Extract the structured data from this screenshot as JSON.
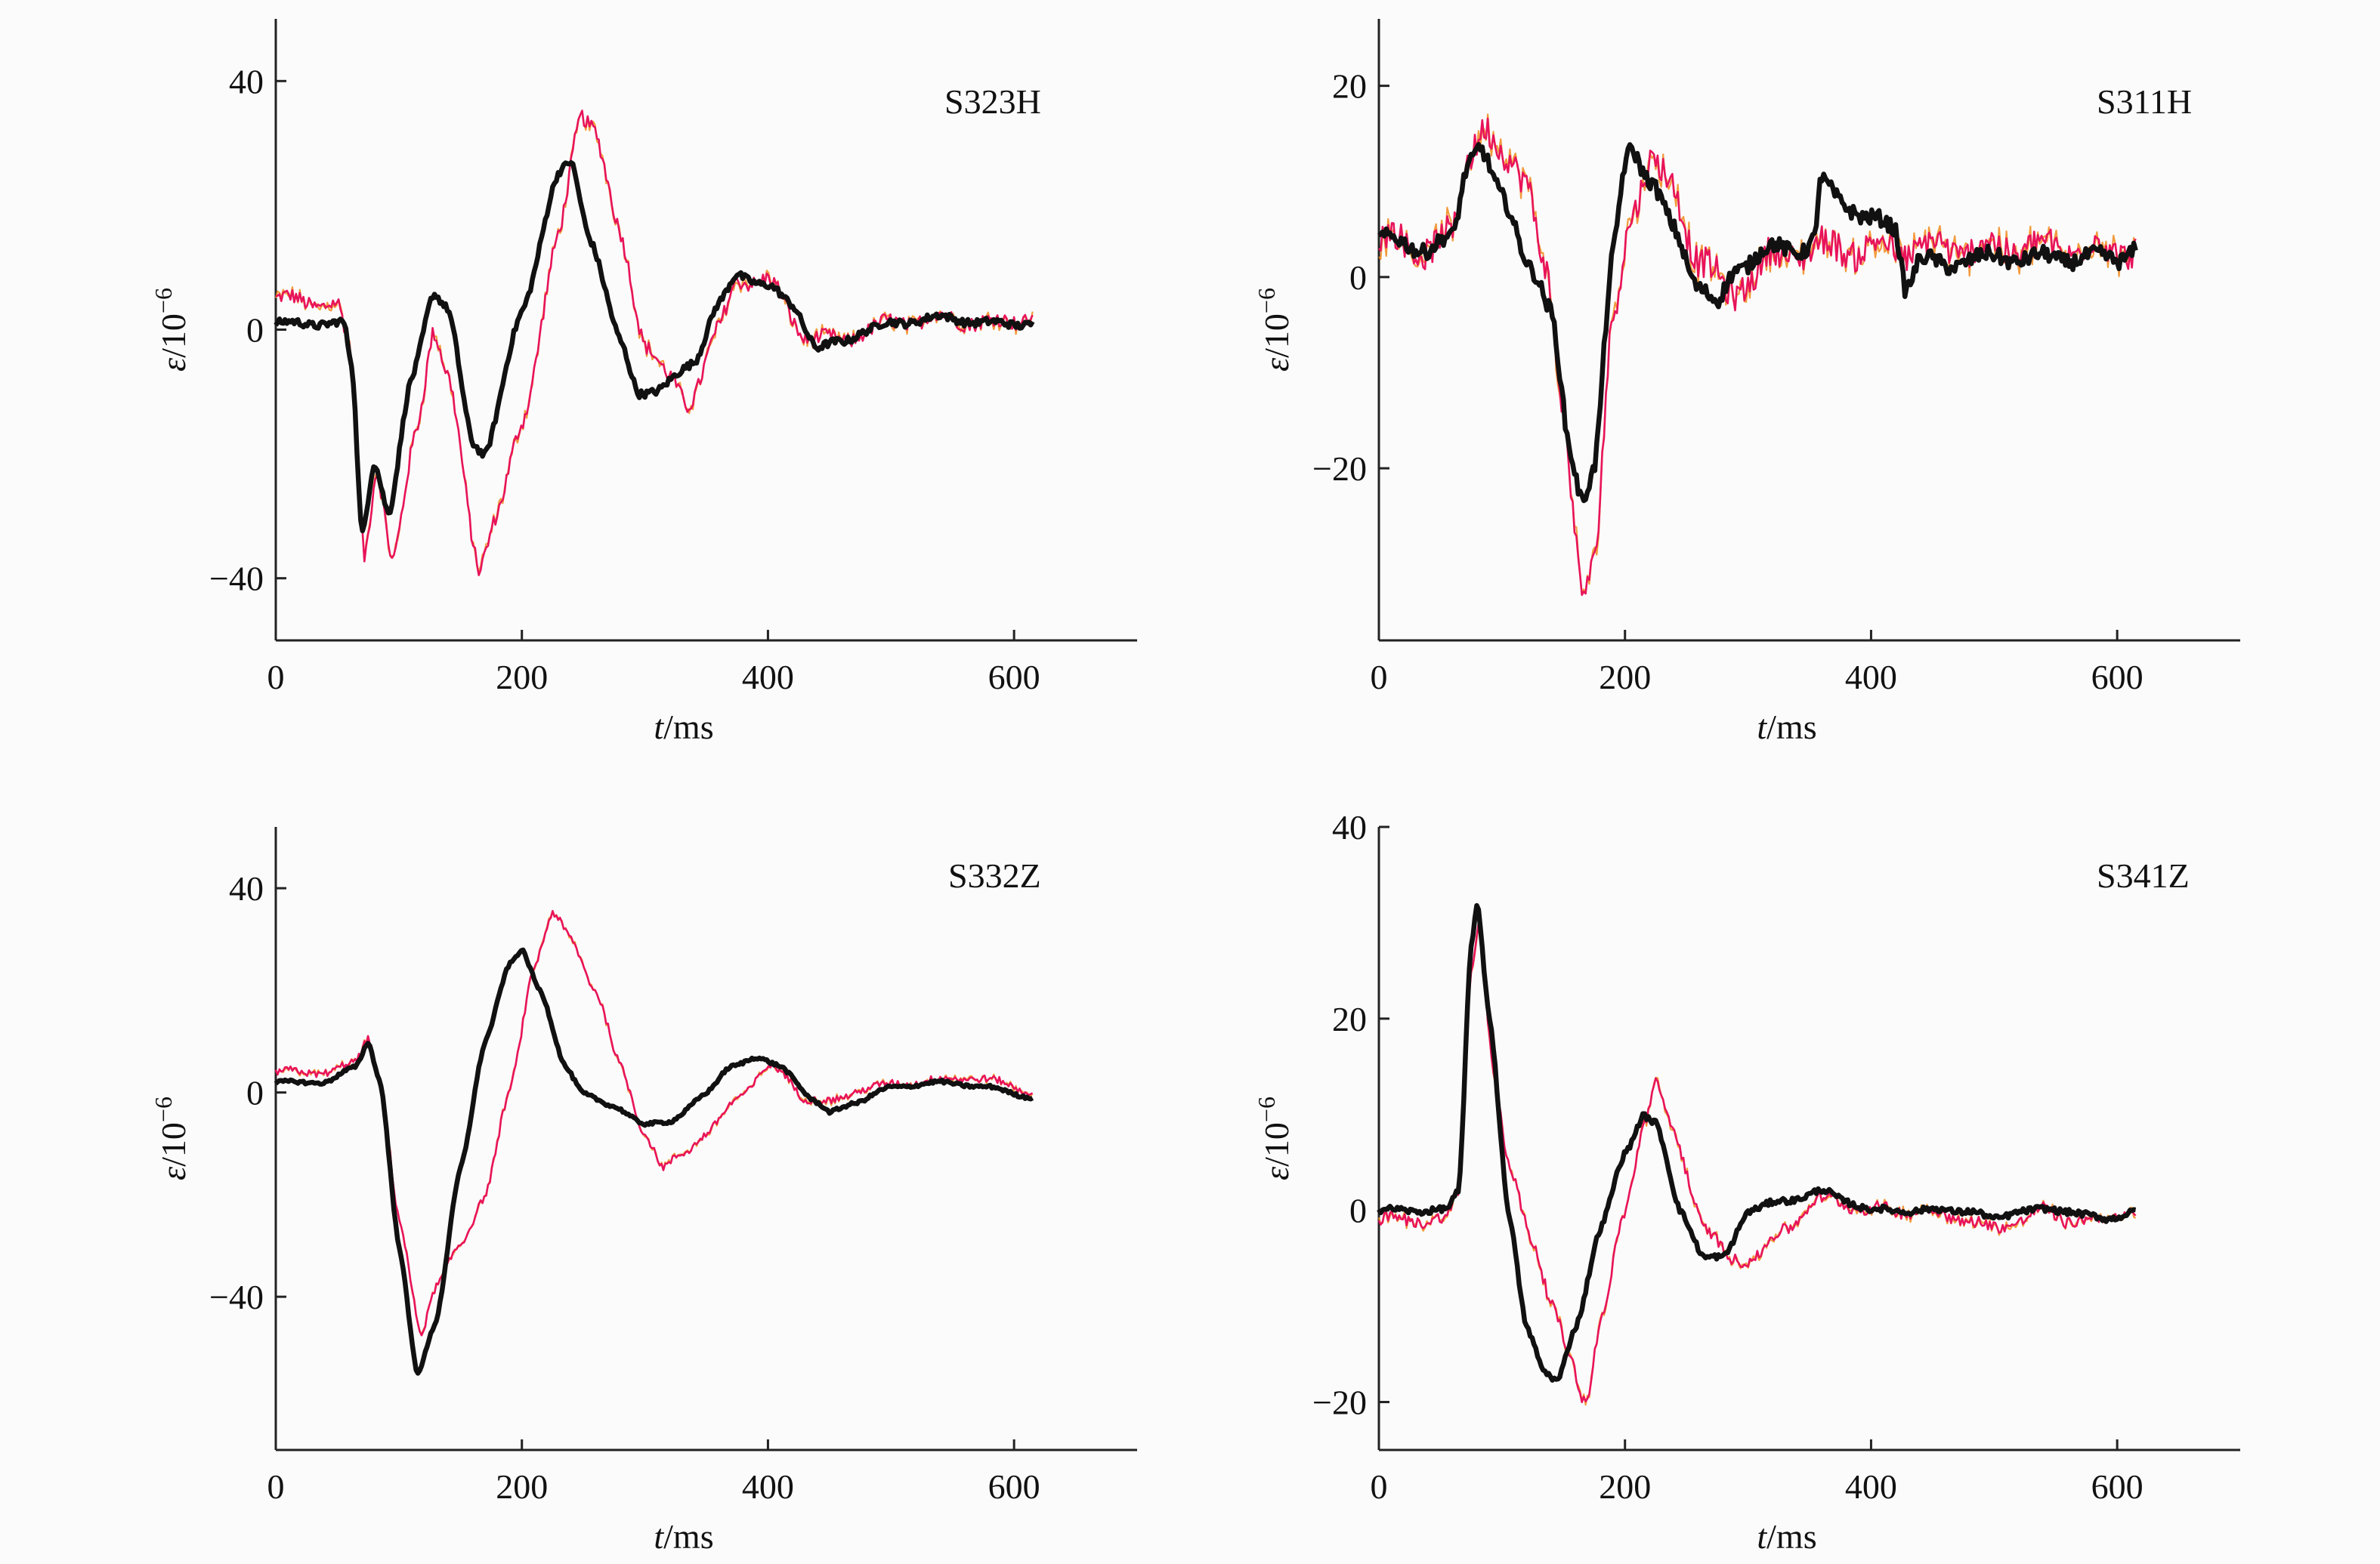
{
  "colors": {
    "background": "#fbfbfb",
    "axis": "#222222",
    "black_series": "#111111",
    "red_series": "#e8135a",
    "orange_series": "#f08a1c"
  },
  "chart_data": [
    {
      "type": "line",
      "panel_label": "S323H",
      "xlabel": {
        "var": "t",
        "unit": "/ms"
      },
      "ylabel": {
        "var": "ε",
        "unit": "/10",
        "exp": "−6"
      },
      "xlim": [
        0,
        700
      ],
      "ylim": [
        -50,
        50
      ],
      "xticks": [
        0,
        200,
        400,
        600
      ],
      "xtick_labels": [
        "0",
        "200",
        "400",
        "600"
      ],
      "yticks": [
        -40,
        0,
        40
      ],
      "ytick_labels": [
        "−40",
        "0",
        "40"
      ],
      "series": [
        {
          "color": "black",
          "noise": 0.6,
          "points": [
            [
              0,
              1
            ],
            [
              55,
              1
            ],
            [
              62,
              -6
            ],
            [
              70,
              -33
            ],
            [
              80,
              -21
            ],
            [
              92,
              -30
            ],
            [
              110,
              -8
            ],
            [
              128,
              6
            ],
            [
              140,
              3
            ],
            [
              160,
              -18
            ],
            [
              170,
              -20
            ],
            [
              200,
              3
            ],
            [
              230,
              25
            ],
            [
              240,
              27
            ],
            [
              255,
              15
            ],
            [
              280,
              -2
            ],
            [
              295,
              -10
            ],
            [
              310,
              -10
            ],
            [
              340,
              -5
            ],
            [
              360,
              4
            ],
            [
              375,
              9
            ],
            [
              400,
              7
            ],
            [
              420,
              4
            ],
            [
              440,
              -3
            ],
            [
              460,
              -2
            ],
            [
              480,
              0
            ],
            [
              500,
              1
            ],
            [
              540,
              2
            ],
            [
              580,
              1
            ],
            [
              615,
              1
            ]
          ]
        },
        {
          "color": "red",
          "noise": 1.2,
          "points": [
            [
              0,
              5
            ],
            [
              50,
              4
            ],
            [
              60,
              -3
            ],
            [
              72,
              -36
            ],
            [
              82,
              -22
            ],
            [
              95,
              -38
            ],
            [
              115,
              -15
            ],
            [
              128,
              0
            ],
            [
              140,
              -8
            ],
            [
              165,
              -38
            ],
            [
              180,
              -30
            ],
            [
              200,
              -15
            ],
            [
              230,
              15
            ],
            [
              248,
              35
            ],
            [
              258,
              33
            ],
            [
              280,
              15
            ],
            [
              300,
              -2
            ],
            [
              320,
              -8
            ],
            [
              335,
              -12
            ],
            [
              360,
              0
            ],
            [
              375,
              8
            ],
            [
              400,
              8
            ],
            [
              430,
              -1
            ],
            [
              460,
              -2
            ],
            [
              480,
              0
            ],
            [
              500,
              1
            ],
            [
              540,
              2
            ],
            [
              580,
              1
            ],
            [
              615,
              2
            ]
          ]
        }
      ]
    },
    {
      "type": "line",
      "panel_label": "S311H",
      "xlabel": {
        "var": "t",
        "unit": "/ms"
      },
      "ylabel": {
        "var": "ε",
        "unit": "/10",
        "exp": "−6"
      },
      "xlim": [
        0,
        700
      ],
      "ylim": [
        -38,
        27
      ],
      "xticks": [
        0,
        200,
        400,
        600
      ],
      "xtick_labels": [
        "0",
        "200",
        "400",
        "600"
      ],
      "yticks": [
        -20,
        0,
        20
      ],
      "ytick_labels": [
        "−20",
        "0",
        "20"
      ],
      "series": [
        {
          "color": "black",
          "noise": 0.8,
          "points": [
            [
              0,
              4
            ],
            [
              40,
              3
            ],
            [
              60,
              4
            ],
            [
              72,
              12
            ],
            [
              82,
              14
            ],
            [
              100,
              8
            ],
            [
              125,
              1
            ],
            [
              140,
              -4
            ],
            [
              155,
              -18
            ],
            [
              165,
              -23
            ],
            [
              175,
              -20
            ],
            [
              190,
              2
            ],
            [
              200,
              12
            ],
            [
              205,
              14
            ],
            [
              220,
              10
            ],
            [
              240,
              5
            ],
            [
              260,
              -1
            ],
            [
              275,
              -3
            ],
            [
              290,
              1
            ],
            [
              320,
              3
            ],
            [
              345,
              3
            ],
            [
              355,
              4
            ],
            [
              358,
              10
            ],
            [
              375,
              8
            ],
            [
              400,
              6
            ],
            [
              420,
              5
            ],
            [
              428,
              -1
            ],
            [
              440,
              2
            ],
            [
              460,
              1
            ],
            [
              480,
              2
            ],
            [
              520,
              2
            ],
            [
              560,
              2
            ],
            [
              600,
              2
            ],
            [
              615,
              3
            ]
          ]
        },
        {
          "color": "red",
          "noise": 1.6,
          "points": [
            [
              0,
              4
            ],
            [
              40,
              3
            ],
            [
              60,
              4
            ],
            [
              72,
              13
            ],
            [
              85,
              16
            ],
            [
              100,
              12
            ],
            [
              120,
              11
            ],
            [
              135,
              1
            ],
            [
              150,
              -15
            ],
            [
              165,
              -32
            ],
            [
              175,
              -30
            ],
            [
              190,
              -5
            ],
            [
              205,
              7
            ],
            [
              220,
              12
            ],
            [
              240,
              9
            ],
            [
              260,
              2
            ],
            [
              285,
              -2
            ],
            [
              300,
              0
            ],
            [
              320,
              2
            ],
            [
              350,
              3
            ],
            [
              380,
              3
            ],
            [
              400,
              3
            ],
            [
              430,
              3
            ],
            [
              460,
              3
            ],
            [
              480,
              3
            ],
            [
              520,
              3
            ],
            [
              560,
              3
            ],
            [
              600,
              3
            ],
            [
              615,
              3
            ]
          ]
        }
      ]
    },
    {
      "type": "line",
      "panel_label": "S332Z",
      "xlabel": {
        "var": "t",
        "unit": "/ms"
      },
      "ylabel": {
        "var": "ε",
        "unit": "/10",
        "exp": "−6"
      },
      "xlim": [
        0,
        700
      ],
      "ylim": [
        -70,
        52
      ],
      "xticks": [
        0,
        200,
        400,
        600
      ],
      "xtick_labels": [
        "0",
        "200",
        "400",
        "600"
      ],
      "yticks": [
        -40,
        0,
        40
      ],
      "ytick_labels": [
        "−40",
        "0",
        "40"
      ],
      "series": [
        {
          "color": "black",
          "noise": 0.3,
          "points": [
            [
              0,
              2
            ],
            [
              40,
              2
            ],
            [
              65,
              5
            ],
            [
              75,
              10
            ],
            [
              85,
              2
            ],
            [
              100,
              -30
            ],
            [
              115,
              -55
            ],
            [
              130,
              -45
            ],
            [
              150,
              -15
            ],
            [
              170,
              10
            ],
            [
              190,
              25
            ],
            [
              200,
              28
            ],
            [
              215,
              20
            ],
            [
              235,
              5
            ],
            [
              250,
              0
            ],
            [
              275,
              -3
            ],
            [
              300,
              -6
            ],
            [
              320,
              -6
            ],
            [
              350,
              0
            ],
            [
              370,
              5
            ],
            [
              390,
              7
            ],
            [
              410,
              5
            ],
            [
              440,
              -2
            ],
            [
              450,
              -4
            ],
            [
              470,
              -2
            ],
            [
              500,
              1
            ],
            [
              540,
              2
            ],
            [
              580,
              1
            ],
            [
              615,
              -1
            ]
          ]
        },
        {
          "color": "red",
          "noise": 0.7,
          "points": [
            [
              0,
              4
            ],
            [
              45,
              4
            ],
            [
              65,
              6
            ],
            [
              75,
              11
            ],
            [
              85,
              2
            ],
            [
              100,
              -25
            ],
            [
              118,
              -47
            ],
            [
              130,
              -38
            ],
            [
              150,
              -30
            ],
            [
              170,
              -20
            ],
            [
              190,
              0
            ],
            [
              210,
              25
            ],
            [
              225,
              35
            ],
            [
              240,
              30
            ],
            [
              260,
              20
            ],
            [
              280,
              5
            ],
            [
              300,
              -8
            ],
            [
              315,
              -15
            ],
            [
              330,
              -12
            ],
            [
              350,
              -8
            ],
            [
              380,
              0
            ],
            [
              400,
              5
            ],
            [
              410,
              4
            ],
            [
              430,
              -1
            ],
            [
              450,
              -2
            ],
            [
              480,
              1
            ],
            [
              520,
              2
            ],
            [
              560,
              3
            ],
            [
              590,
              2
            ],
            [
              615,
              0
            ]
          ]
        }
      ]
    },
    {
      "type": "line",
      "panel_label": "S341Z",
      "xlabel": {
        "var": "t",
        "unit": "/ms"
      },
      "ylabel": {
        "var": "ε",
        "unit": "/10",
        "exp": "−6"
      },
      "xlim": [
        0,
        700
      ],
      "ylim": [
        -25,
        40
      ],
      "xticks": [
        0,
        200,
        400,
        600
      ],
      "xtick_labels": [
        "0",
        "200",
        "400",
        "600"
      ],
      "yticks": [
        -20,
        0,
        20,
        40
      ],
      "ytick_labels": [
        "−20",
        "0",
        "20",
        "40"
      ],
      "series": [
        {
          "color": "black",
          "noise": 0.3,
          "points": [
            [
              0,
              0
            ],
            [
              55,
              0
            ],
            [
              65,
              2
            ],
            [
              75,
              28
            ],
            [
              80,
              32
            ],
            [
              90,
              20
            ],
            [
              105,
              0
            ],
            [
              120,
              -12
            ],
            [
              135,
              -17
            ],
            [
              145,
              -18
            ],
            [
              160,
              -12
            ],
            [
              180,
              -2
            ],
            [
              200,
              6
            ],
            [
              215,
              10
            ],
            [
              225,
              9
            ],
            [
              245,
              0
            ],
            [
              265,
              -5
            ],
            [
              280,
              -5
            ],
            [
              300,
              0
            ],
            [
              330,
              1
            ],
            [
              360,
              2
            ],
            [
              380,
              1
            ],
            [
              400,
              0
            ],
            [
              440,
              0
            ],
            [
              480,
              0
            ],
            [
              500,
              -1
            ],
            [
              520,
              0
            ],
            [
              560,
              0
            ],
            [
              590,
              -1
            ],
            [
              615,
              0
            ]
          ]
        },
        {
          "color": "red",
          "noise": 0.6,
          "points": [
            [
              0,
              -1
            ],
            [
              55,
              -1
            ],
            [
              65,
              2
            ],
            [
              75,
              25
            ],
            [
              82,
              31
            ],
            [
              92,
              15
            ],
            [
              105,
              5
            ],
            [
              125,
              -3
            ],
            [
              140,
              -10
            ],
            [
              155,
              -15
            ],
            [
              168,
              -20
            ],
            [
              180,
              -12
            ],
            [
              200,
              0
            ],
            [
              215,
              9
            ],
            [
              225,
              13
            ],
            [
              240,
              8
            ],
            [
              265,
              -2
            ],
            [
              285,
              -5
            ],
            [
              305,
              -5
            ],
            [
              330,
              -2
            ],
            [
              355,
              1
            ],
            [
              370,
              1
            ],
            [
              400,
              0
            ],
            [
              440,
              0
            ],
            [
              480,
              -1
            ],
            [
              500,
              -2
            ],
            [
              520,
              -1
            ],
            [
              540,
              0
            ],
            [
              560,
              -1
            ],
            [
              590,
              -1
            ],
            [
              615,
              0
            ]
          ]
        }
      ]
    }
  ]
}
